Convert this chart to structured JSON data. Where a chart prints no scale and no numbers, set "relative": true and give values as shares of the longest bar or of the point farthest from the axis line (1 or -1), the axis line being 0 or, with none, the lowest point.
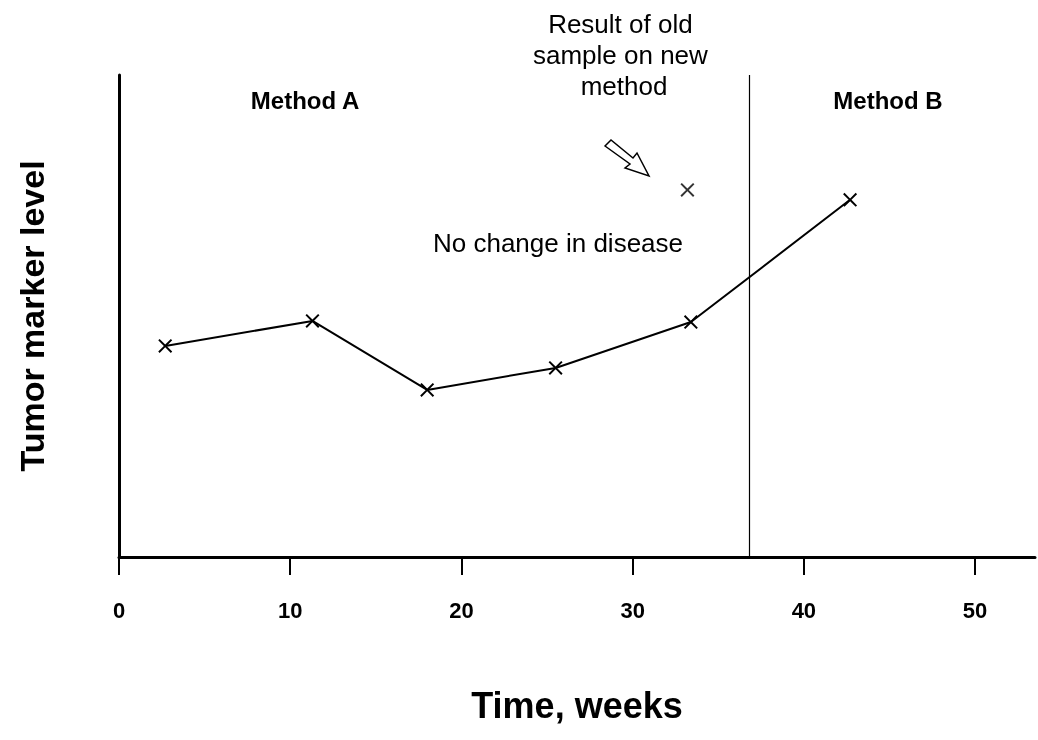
{
  "chart_data": {
    "type": "line",
    "xlabel": "Time, weeks",
    "ylabel": "Tumor marker level",
    "relative": true,
    "xlim": [
      0,
      53.5
    ],
    "xticks": [
      0,
      10,
      20,
      30,
      40,
      50
    ],
    "marker": "cross",
    "line_style": "solid",
    "grid": false,
    "series": [
      {
        "color": "#000000",
        "x": [
          2.7,
          11.3,
          18.0,
          25.5,
          33.4,
          42.7
        ],
        "values": [
          0.575,
          0.643,
          0.455,
          0.515,
          0.64,
          0.973
        ]
      },
      {
        "type": "scatter",
        "color": "#000000",
        "x": [
          33.2
        ],
        "values": [
          1
        ]
      }
    ],
    "ref_lines": [
      {
        "axis": "x",
        "value": 36.8,
        "color": "#000000",
        "line_style": "solid"
      }
    ],
    "annotations": [
      "Method A",
      "Method B",
      "Result of old sample on new method",
      "No change in disease"
    ]
  }
}
